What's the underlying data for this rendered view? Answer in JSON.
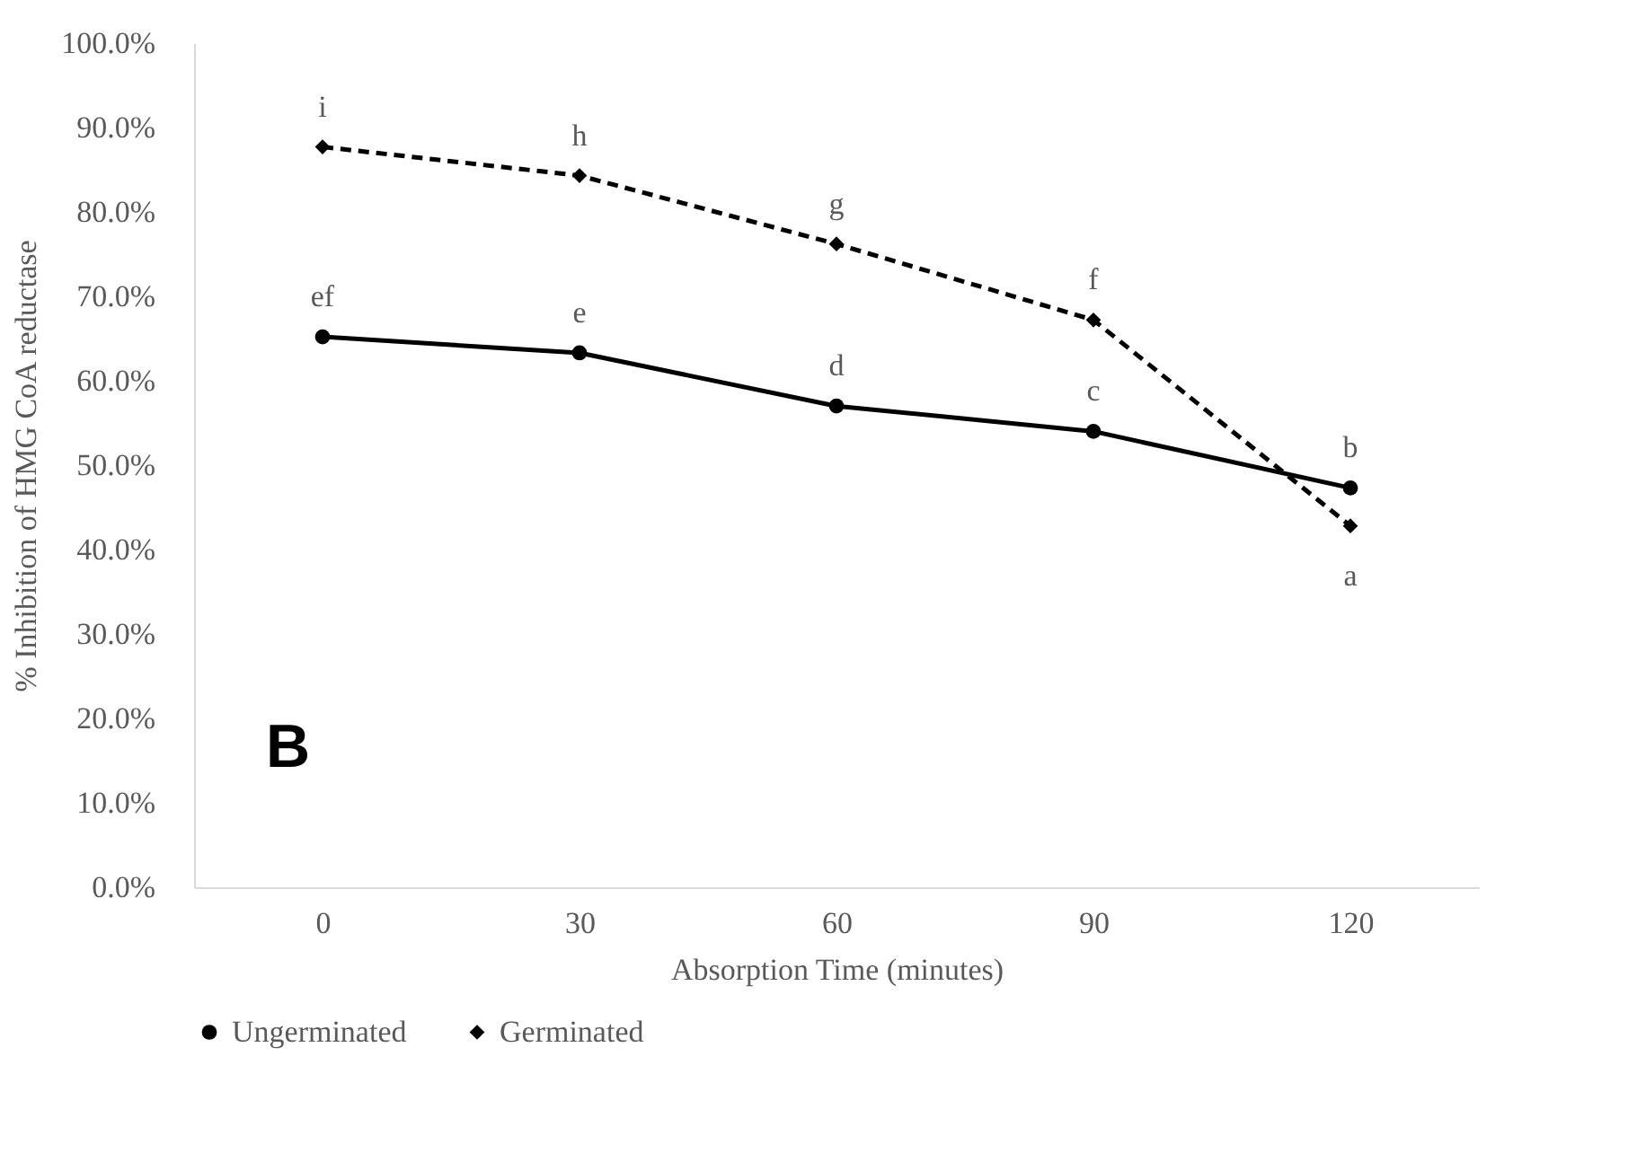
{
  "chart_data": {
    "type": "line",
    "xlabel": "Absorption Time (minutes)",
    "ylabel": "% Inhibition of HMG CoA reductase",
    "categories": [
      "0",
      "30",
      "60",
      "90",
      "120"
    ],
    "series": [
      {
        "name": "Ungerminated",
        "color": "#000000",
        "marker": "circle",
        "line_style": "solid",
        "values": [
          65.2,
          63.3,
          57.0,
          54.0,
          47.3
        ]
      },
      {
        "name": "Germinated",
        "color": "#000000",
        "marker": "diamond",
        "line_style": "dashed",
        "values": [
          87.7,
          84.3,
          76.2,
          67.2,
          42.8
        ]
      }
    ],
    "ylim": [
      0,
      100
    ],
    "yticks": [
      {
        "value": 0,
        "label": "0.0%"
      },
      {
        "value": 10,
        "label": "10.0%"
      },
      {
        "value": 20,
        "label": "20.0%"
      },
      {
        "value": 30,
        "label": "30.0%"
      },
      {
        "value": 40,
        "label": "40.0%"
      },
      {
        "value": 50,
        "label": "50.0%"
      },
      {
        "value": 60,
        "label": "60.0%"
      },
      {
        "value": 70,
        "label": "70.0%"
      },
      {
        "value": 80,
        "label": "80.0%"
      },
      {
        "value": 90,
        "label": "90.0%"
      },
      {
        "value": 100,
        "label": "100.0%"
      }
    ],
    "annotations": [
      {
        "text": "ef",
        "x": "0",
        "y": 65.2
      },
      {
        "text": "e",
        "x": "30",
        "y": 63.3
      },
      {
        "text": "d",
        "x": "60",
        "y": 57.0
      },
      {
        "text": "c",
        "x": "90",
        "y": 54.0
      },
      {
        "text": "b",
        "x": "120",
        "y": 47.3
      },
      {
        "text": "i",
        "x": "0",
        "y": 87.7
      },
      {
        "text": "h",
        "x": "30",
        "y": 84.3
      },
      {
        "text": "g",
        "x": "60",
        "y": 76.2
      },
      {
        "text": "f",
        "x": "90",
        "y": 67.2
      },
      {
        "text": "a",
        "x": "120",
        "y": 42.8
      },
      "B"
    ],
    "grid": false,
    "legend": "bottom"
  }
}
